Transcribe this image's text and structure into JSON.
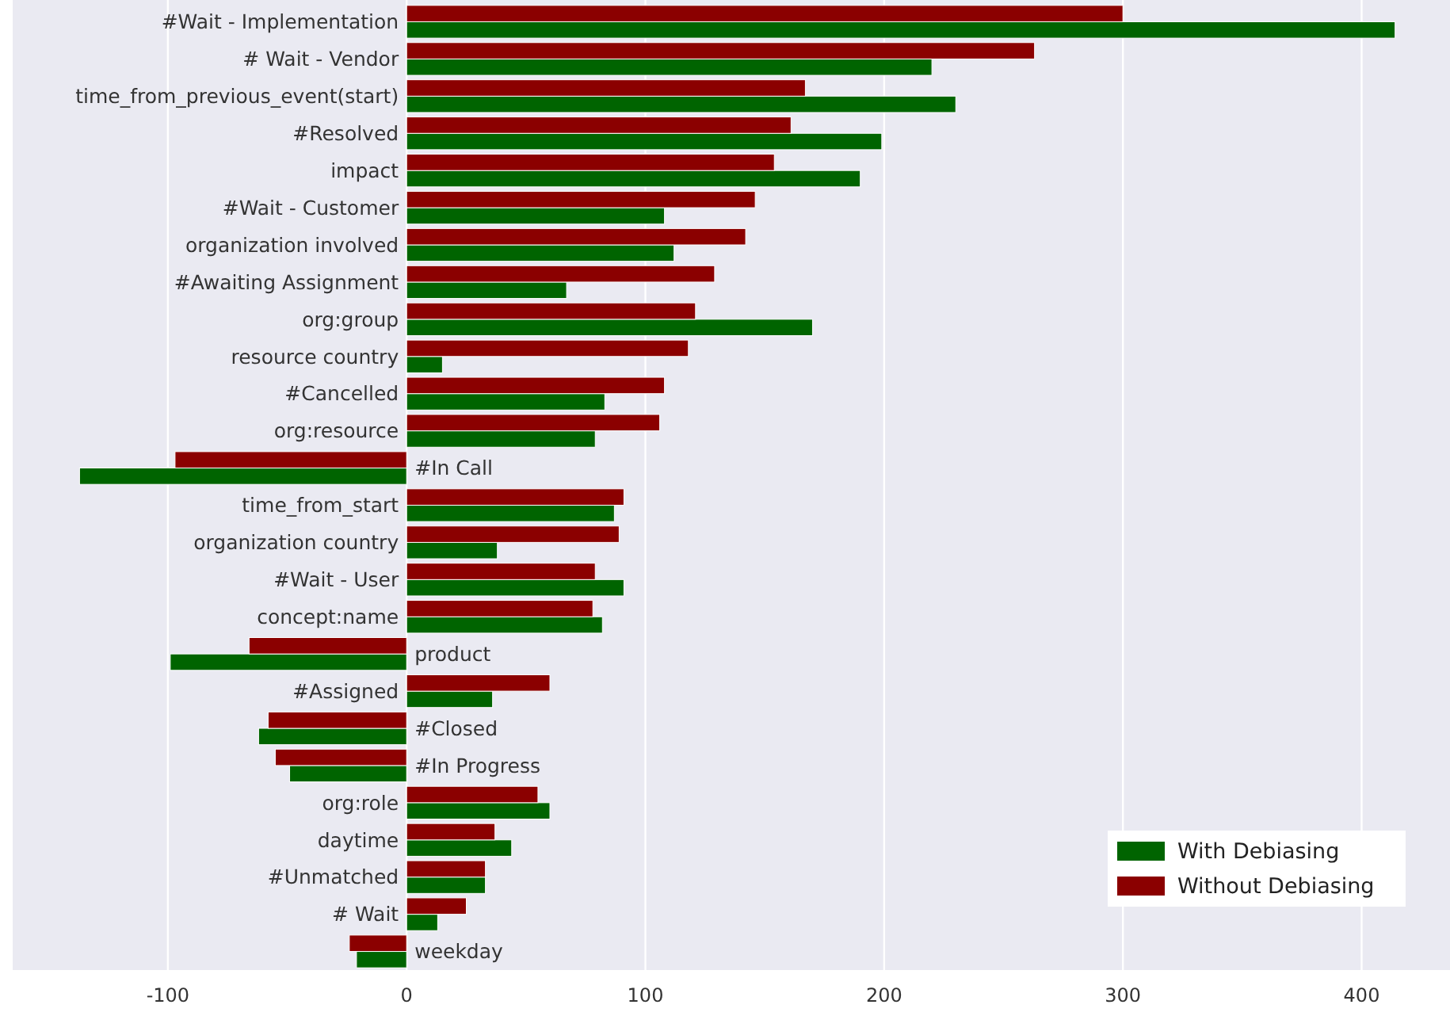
{
  "chart_data": {
    "type": "bar",
    "orientation": "horizontal",
    "categories": [
      "#Wait - Implementation",
      "# Wait - Vendor",
      "time_from_previous_event(start)",
      "#Resolved",
      "impact",
      "#Wait - Customer",
      "organization involved",
      "#Awaiting Assignment",
      "org:group",
      "resource country",
      "#Cancelled",
      "org:resource",
      "#In Call",
      "time_from_start",
      "organization country",
      "#Wait - User",
      "concept:name",
      "product",
      "#Assigned",
      "#Closed",
      "#In Progress",
      "org:role",
      "daytime",
      "#Unmatched",
      "# Wait",
      "weekday"
    ],
    "series": [
      {
        "name": "With Debiasing",
        "color": "#006400",
        "values": [
          414,
          220,
          230,
          199,
          190,
          108,
          112,
          67,
          170,
          15,
          83,
          79,
          -137,
          87,
          38,
          91,
          82,
          -99,
          36,
          -62,
          -49,
          60,
          44,
          33,
          13,
          -21
        ]
      },
      {
        "name": "Without Debiasing",
        "color": "#8b0000",
        "values": [
          300,
          263,
          167,
          161,
          154,
          146,
          142,
          129,
          121,
          118,
          108,
          106,
          -97,
          91,
          89,
          79,
          78,
          -66,
          60,
          -58,
          -55,
          55,
          37,
          33,
          25,
          -24
        ]
      }
    ],
    "xlim": [
      -165,
      437
    ],
    "xticks": [
      -100,
      0,
      100,
      200,
      300,
      400
    ],
    "grid": "x",
    "legend": "bottom right"
  }
}
